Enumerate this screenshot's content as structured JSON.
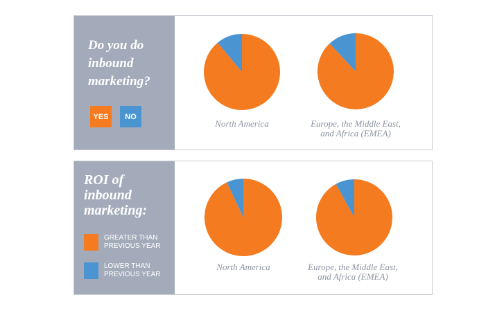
{
  "colors": {
    "orange": "#f47b20",
    "blue": "#4b94d2",
    "sidebar": "#a3abba",
    "label_gray": "#8c93a2"
  },
  "chart_data": [
    {
      "type": "pie",
      "title": "Do you do inbound marketing?",
      "legend": [
        "YES",
        "NO"
      ],
      "groups": [
        {
          "name": "North America",
          "values": [
            89,
            11
          ]
        },
        {
          "name": "Europe, the Middle East,\nand Africa (EMEA)",
          "values": [
            88,
            12
          ]
        }
      ]
    },
    {
      "type": "pie",
      "title": "ROI of inbound marketing:",
      "legend": [
        "GREATER THAN\nPREVIOUS YEAR",
        "LOWER THAN\nPREVIOUS YEAR"
      ],
      "groups": [
        {
          "name": "North America",
          "values": [
            93,
            7
          ]
        },
        {
          "name": "Europe, the Middle East,\nand Africa (EMEA)",
          "values": [
            92,
            8
          ]
        }
      ]
    }
  ]
}
